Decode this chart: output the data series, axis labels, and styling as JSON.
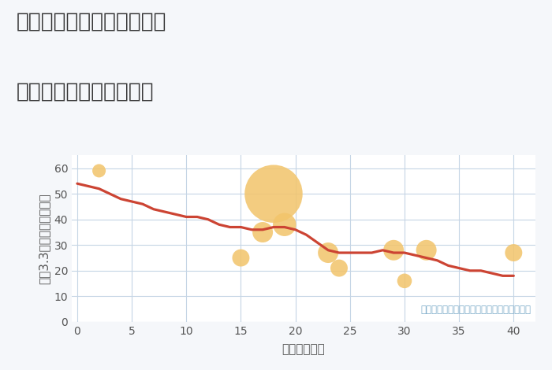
{
  "title_line1": "大阪府寝屋川市太間東町の",
  "title_line2": "築年数別中古戸建て価格",
  "xlabel": "築年数（年）",
  "ylabel": "坪（3.3㎡）単価（万円）",
  "background_color": "#f5f7fa",
  "plot_bg_color": "#ffffff",
  "grid_color": "#c5d5e5",
  "line_color": "#cc4433",
  "scatter_color": "#f2c46a",
  "annotation_color": "#7aaac8",
  "annotation_text": "円の大きさは、取引のあった物件面積を示す",
  "xlim": [
    -0.5,
    42
  ],
  "ylim": [
    0,
    65
  ],
  "xticks": [
    0,
    5,
    10,
    15,
    20,
    25,
    30,
    35,
    40
  ],
  "yticks": [
    0,
    10,
    20,
    30,
    40,
    50,
    60
  ],
  "line_x": [
    0,
    1,
    2,
    3,
    4,
    5,
    6,
    7,
    8,
    9,
    10,
    11,
    12,
    13,
    14,
    15,
    16,
    17,
    18,
    19,
    20,
    21,
    22,
    23,
    24,
    25,
    26,
    27,
    28,
    29,
    30,
    31,
    32,
    33,
    34,
    35,
    36,
    37,
    38,
    39,
    40
  ],
  "line_y": [
    54,
    53,
    52,
    50,
    48,
    47,
    46,
    44,
    43,
    42,
    41,
    41,
    40,
    38,
    37,
    37,
    36,
    36,
    37,
    37,
    36,
    34,
    31,
    28,
    27,
    27,
    27,
    27,
    28,
    27,
    27,
    26,
    25,
    24,
    22,
    21,
    20,
    20,
    19,
    18,
    18
  ],
  "scatter_x": [
    2,
    15,
    17,
    18,
    19,
    23,
    24,
    29,
    30,
    32,
    40
  ],
  "scatter_y": [
    59,
    25,
    35,
    50,
    38,
    27,
    21,
    28,
    16,
    28,
    27
  ],
  "scatter_sizes": [
    150,
    250,
    350,
    2800,
    450,
    350,
    250,
    350,
    180,
    350,
    250
  ],
  "title_fontsize": 19,
  "axis_label_fontsize": 11,
  "tick_fontsize": 10,
  "annotation_fontsize": 8.5
}
